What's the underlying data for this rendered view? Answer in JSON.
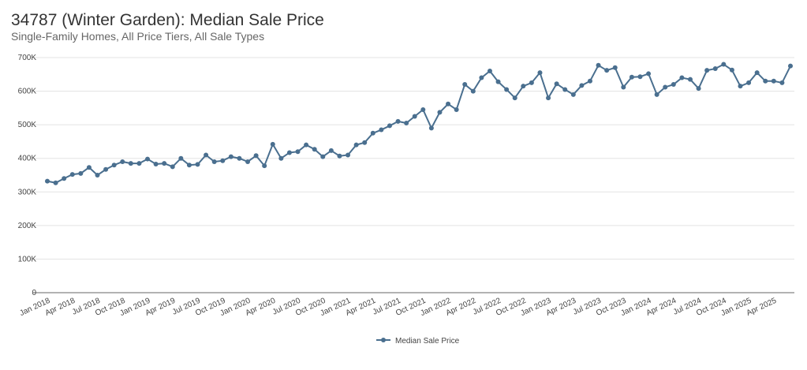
{
  "chart_data": {
    "type": "line",
    "title": "34787 (Winter Garden): Median Sale Price",
    "subtitle": "Single-Family Homes, All Price Tiers, All Sale Types",
    "xlabel": "",
    "ylabel": "",
    "ylim": [
      0,
      700000
    ],
    "y_ticks": [
      0,
      100000,
      200000,
      300000,
      400000,
      500000,
      600000,
      700000
    ],
    "y_tick_labels": [
      "0",
      "100K",
      "200K",
      "300K",
      "400K",
      "500K",
      "600K",
      "700K"
    ],
    "x_tick_labels": [
      "Jan 2018",
      "Apr 2018",
      "Jul 2018",
      "Oct 2018",
      "Jan 2019",
      "Apr 2019",
      "Jul 2019",
      "Oct 2019",
      "Jan 2020",
      "Apr 2020",
      "Jul 2020",
      "Oct 2020",
      "Jan 2021",
      "Apr 2021",
      "Jul 2021",
      "Oct 2021",
      "Jan 2022",
      "Apr 2022",
      "Jul 2022",
      "Oct 2022",
      "Jan 2023",
      "Apr 2023",
      "Jul 2023",
      "Oct 2023",
      "Jan 2024",
      "Apr 2024",
      "Jul 2024",
      "Oct 2024",
      "Jan 2025",
      "Apr 2025"
    ],
    "x_start": "Jan 2018",
    "x_end": "Jun 2025",
    "grid": true,
    "legend": "bottom",
    "color": "#4a6f8f",
    "series": [
      {
        "name": "Median Sale Price",
        "values": [
          332000,
          327000,
          340000,
          352000,
          355000,
          373000,
          350000,
          367000,
          380000,
          390000,
          385000,
          385000,
          398000,
          383000,
          385000,
          375000,
          400000,
          380000,
          382000,
          410000,
          390000,
          393000,
          405000,
          400000,
          390000,
          408000,
          378000,
          442000,
          400000,
          417000,
          420000,
          440000,
          427000,
          405000,
          423000,
          407000,
          410000,
          440000,
          447000,
          475000,
          485000,
          497000,
          510000,
          505000,
          525000,
          545000,
          490000,
          537000,
          562000,
          545000,
          620000,
          600000,
          640000,
          660000,
          628000,
          605000,
          580000,
          615000,
          625000,
          655000,
          580000,
          622000,
          605000,
          590000,
          617000,
          630000,
          677000,
          662000,
          670000,
          612000,
          642000,
          643000,
          652000,
          590000,
          612000,
          620000,
          640000,
          635000,
          608000,
          662000,
          667000,
          680000,
          663000,
          615000,
          625000,
          655000,
          630000,
          630000,
          625000,
          675000
        ]
      }
    ]
  }
}
